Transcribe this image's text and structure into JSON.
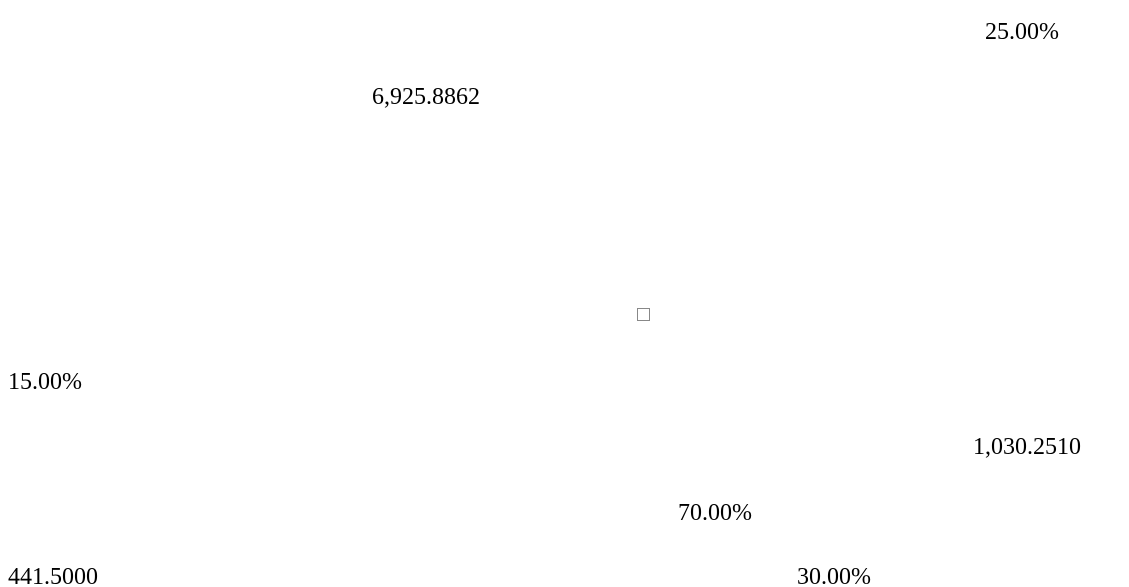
{
  "values": [
    "25.00%",
    "6,925.8862",
    "15.00%",
    "1,030.2510",
    "70.00%",
    "441.5000",
    "30.00%"
  ]
}
